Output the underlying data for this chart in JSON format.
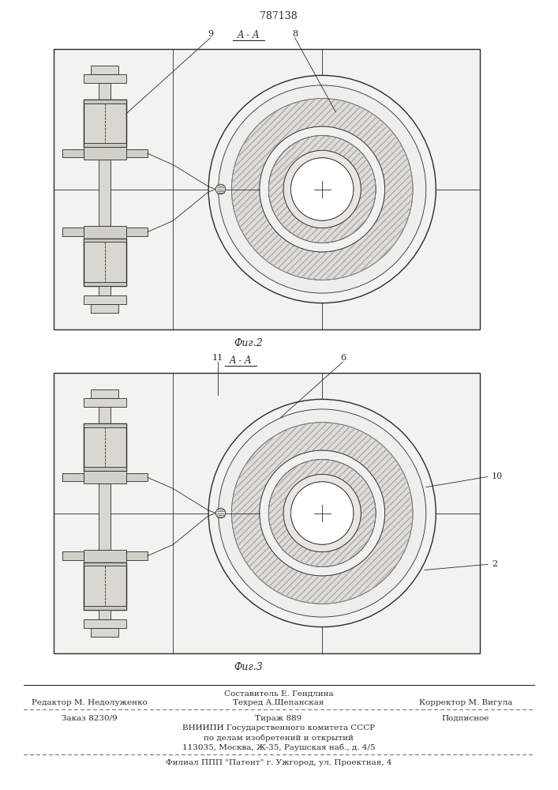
{
  "patent_number": "787138",
  "fig2_label": "A - A",
  "fig2_caption": "Фиг.2",
  "fig3_label": "A - A",
  "fig3_caption": "Фиг.3",
  "label_9": "9",
  "label_8": "8",
  "label_11": "11",
  "label_6": "6",
  "label_10": "10",
  "label_2": "2",
  "footer_line0_center": "Составитель Е. Гендлина",
  "footer_line1_left": "Редактор М. Недолуженко",
  "footer_line1_center": "Техред А.Щепанская",
  "footer_line1_right": "Корректор М. Вигула",
  "footer_line2_left": "Заказ 8230/9",
  "footer_line2_center": "Тираж 889",
  "footer_line2_right": "Подписное",
  "footer_line3": "ВНИИПИ Государственного комитета СССР",
  "footer_line4": "по делам изобретений и открытий",
  "footer_line5": "113035, Москва, Ж-35, Раушская наб., д. 4/5",
  "footer_line6": "Филиал ППП \"Патент\" г. Ужгород, ул. Проектная, 4",
  "line_color": "#2a2a2a"
}
